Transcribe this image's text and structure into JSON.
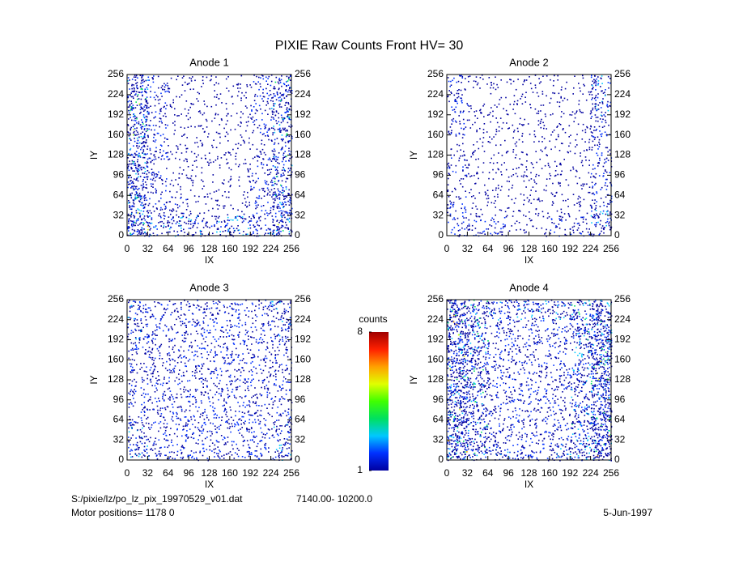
{
  "title": "PIXIE Raw Counts Front HV= 30",
  "footer": {
    "file": "S:/pixie/lz/po_lz_pix_19970529_v01.dat",
    "range": "7140.00- 10200.0",
    "motor": "Motor positions= 1178 0",
    "date": "5-Jun-1997"
  },
  "colorbar": {
    "label": "counts",
    "clim": [
      1,
      8
    ],
    "ticks": [
      1,
      8
    ],
    "colors": [
      "#0000a0",
      "#0030ff",
      "#00c8ff",
      "#00e060",
      "#40ff00",
      "#e0ff00",
      "#ffa000",
      "#ff2000",
      "#a00000"
    ]
  },
  "chart_data": [
    {
      "type": "heatmap",
      "title": "Anode 1",
      "xlabel": "IX",
      "ylabel": "IY",
      "xlim": [
        0,
        256
      ],
      "ylim": [
        0,
        256
      ],
      "xticks": [
        0,
        32,
        64,
        96,
        128,
        160,
        192,
        224,
        256
      ],
      "yticks": [
        0,
        32,
        64,
        96,
        128,
        160,
        192,
        224,
        256
      ],
      "z": [
        [
          5,
          2,
          1,
          1,
          1,
          1,
          2,
          4
        ],
        [
          5,
          2,
          1,
          1,
          1,
          1,
          2,
          4
        ],
        [
          5,
          2,
          1,
          1,
          1,
          1,
          2,
          4
        ],
        [
          5,
          2,
          1,
          1,
          1,
          1,
          1,
          3
        ],
        [
          5,
          2,
          1,
          1,
          1,
          1,
          2,
          4
        ],
        [
          5,
          2,
          1,
          1,
          1,
          1,
          2,
          4
        ],
        [
          5,
          2,
          2,
          1,
          1,
          1,
          2,
          5
        ],
        [
          6,
          3,
          3,
          3,
          3,
          3,
          3,
          5
        ]
      ]
    },
    {
      "type": "heatmap",
      "title": "Anode 2",
      "xlabel": "IX",
      "ylabel": "IY",
      "xlim": [
        0,
        256
      ],
      "ylim": [
        0,
        256
      ],
      "xticks": [
        0,
        32,
        64,
        96,
        128,
        160,
        192,
        224,
        256
      ],
      "yticks": [
        0,
        32,
        64,
        96,
        128,
        160,
        192,
        224,
        256
      ],
      "z": [
        [
          2,
          1,
          1,
          1,
          1,
          1,
          1,
          3
        ],
        [
          2,
          1,
          1,
          1,
          1,
          1,
          1,
          3
        ],
        [
          2,
          1,
          1,
          1,
          1,
          1,
          1,
          2
        ],
        [
          1,
          1,
          1,
          1,
          1,
          1,
          1,
          2
        ],
        [
          2,
          1,
          1,
          1,
          1,
          1,
          1,
          2
        ],
        [
          1,
          1,
          1,
          1,
          1,
          1,
          1,
          2
        ],
        [
          2,
          1,
          1,
          1,
          1,
          1,
          1,
          3
        ],
        [
          2,
          2,
          2,
          1,
          1,
          2,
          2,
          3
        ]
      ]
    },
    {
      "type": "heatmap",
      "title": "Anode 3",
      "xlabel": "IX",
      "ylabel": "IY",
      "xlim": [
        0,
        256
      ],
      "ylim": [
        0,
        256
      ],
      "xticks": [
        0,
        32,
        64,
        96,
        128,
        160,
        192,
        224,
        256
      ],
      "yticks": [
        0,
        32,
        64,
        96,
        128,
        160,
        192,
        224,
        256
      ],
      "z": [
        [
          3,
          2,
          2,
          2,
          2,
          2,
          2,
          3
        ],
        [
          3,
          2,
          2,
          2,
          2,
          2,
          2,
          3
        ],
        [
          2,
          2,
          2,
          2,
          2,
          2,
          2,
          2
        ],
        [
          2,
          2,
          2,
          2,
          2,
          2,
          2,
          2
        ],
        [
          2,
          2,
          2,
          2,
          2,
          2,
          2,
          2
        ],
        [
          2,
          2,
          2,
          2,
          2,
          2,
          2,
          2
        ],
        [
          3,
          2,
          2,
          2,
          2,
          2,
          2,
          3
        ],
        [
          3,
          2,
          2,
          2,
          2,
          2,
          2,
          3
        ]
      ]
    },
    {
      "type": "heatmap",
      "title": "Anode 4",
      "xlabel": "IX",
      "ylabel": "IY",
      "xlim": [
        0,
        256
      ],
      "ylim": [
        0,
        256
      ],
      "xticks": [
        0,
        32,
        64,
        96,
        128,
        160,
        192,
        224,
        256
      ],
      "yticks": [
        0,
        32,
        64,
        96,
        128,
        160,
        192,
        224,
        256
      ],
      "z": [
        [
          6,
          4,
          3,
          3,
          3,
          3,
          4,
          6
        ],
        [
          6,
          4,
          2,
          2,
          2,
          2,
          4,
          6
        ],
        [
          6,
          4,
          2,
          2,
          2,
          2,
          3,
          6
        ],
        [
          6,
          4,
          2,
          2,
          2,
          2,
          3,
          6
        ],
        [
          6,
          4,
          2,
          2,
          2,
          2,
          3,
          6
        ],
        [
          6,
          4,
          2,
          2,
          2,
          2,
          3,
          6
        ],
        [
          6,
          4,
          2,
          2,
          2,
          2,
          4,
          6
        ],
        [
          6,
          4,
          3,
          2,
          2,
          3,
          4,
          6
        ]
      ]
    }
  ]
}
